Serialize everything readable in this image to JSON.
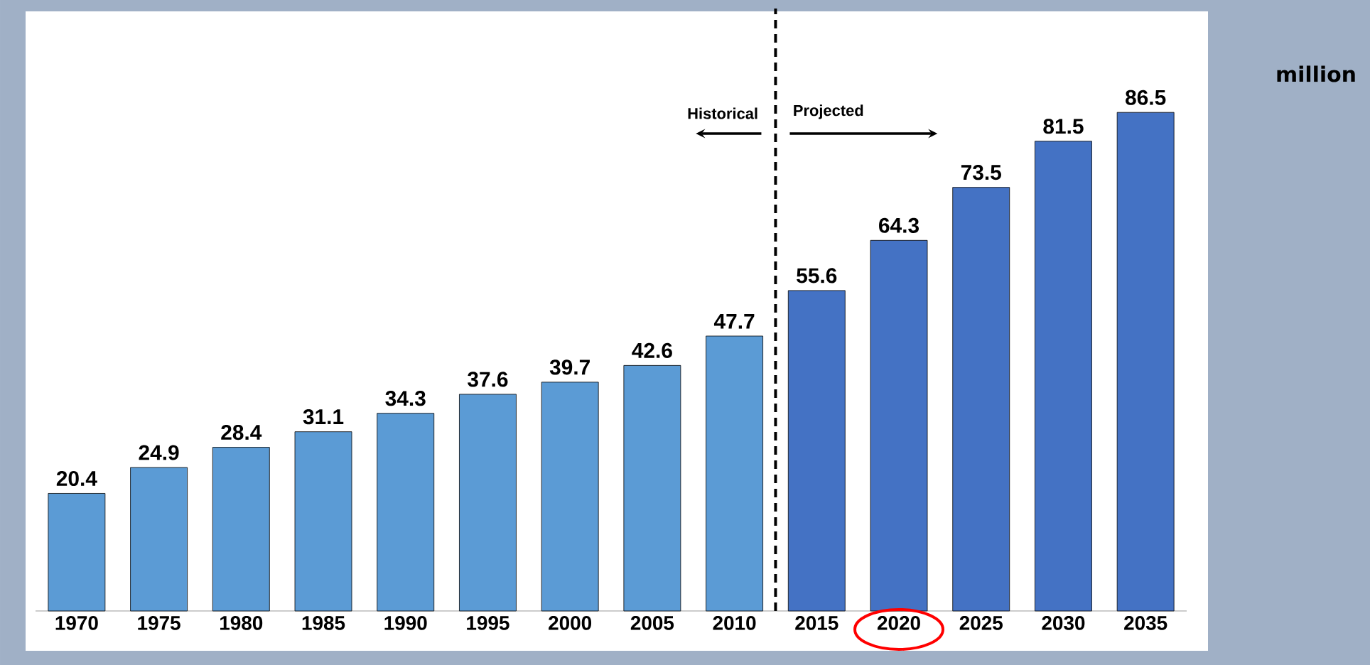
{
  "chart_data": {
    "type": "bar",
    "categories": [
      "1970",
      "1975",
      "1980",
      "1985",
      "1990",
      "1995",
      "2000",
      "2005",
      "2010",
      "2015",
      "2020",
      "2025",
      "2030",
      "2035"
    ],
    "values": [
      20.4,
      24.9,
      28.4,
      31.1,
      34.3,
      37.6,
      39.7,
      42.6,
      47.7,
      55.6,
      64.3,
      73.5,
      81.5,
      86.5
    ],
    "colors": [
      "#5b9bd5",
      "#5b9bd5",
      "#5b9bd5",
      "#5b9bd5",
      "#5b9bd5",
      "#5b9bd5",
      "#5b9bd5",
      "#5b9bd5",
      "#5b9bd5",
      "#4472c4",
      "#4472c4",
      "#4472c4",
      "#4472c4",
      "#4472c4"
    ],
    "data_labels": true,
    "ylabel": "million",
    "annotations": [
      "Historical",
      "Projected"
    ]
  }
}
